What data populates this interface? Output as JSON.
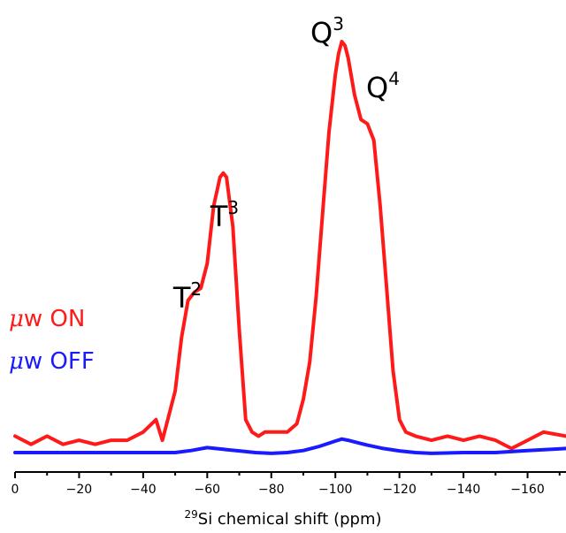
{
  "chart_data": {
    "type": "line",
    "title": "",
    "xlabel": {
      "superscript": "29",
      "text": "Si chemical shift (ppm)"
    },
    "ylabel": "",
    "xlim": [
      0,
      -172
    ],
    "x_reversed": true,
    "y_axis_visible": false,
    "grid": false,
    "x_ticks": [
      0,
      -20,
      -40,
      -60,
      -80,
      -100,
      -120,
      -140,
      -160
    ],
    "x_tick_labels": [
      "0",
      "−20",
      "−40",
      "−60",
      "−80",
      "−100",
      "−120",
      "−140",
      "−160"
    ],
    "ylim": [
      -0.05,
      1.0
    ],
    "legend_placement": "left",
    "legend": [
      {
        "symbol": "μ",
        "text": "w ON",
        "color": "#ff1a1a"
      },
      {
        "symbol": "μ",
        "text": "w OFF",
        "color": "#1a1aff"
      }
    ],
    "annotations": [
      {
        "base": "T",
        "sup": "2",
        "x": -53.5,
        "y": 0.45
      },
      {
        "base": "T",
        "sup": "3",
        "x": -65,
        "y": 0.68
      },
      {
        "base": "Q",
        "sup": "3",
        "x": -98,
        "y": 1.0
      },
      {
        "base": "Q",
        "sup": "4",
        "x": -114,
        "y": 0.85
      }
    ],
    "series": [
      {
        "name": "μw ON",
        "color": "#ff1a1a",
        "x": [
          0,
          -5,
          -10,
          -15,
          -20,
          -25,
          -30,
          -35,
          -40,
          -44,
          -46,
          -48,
          -50,
          -52,
          -54,
          -56,
          -58,
          -60,
          -62,
          -64,
          -65,
          -66,
          -68,
          -70,
          -72,
          -74,
          -76,
          -78,
          -80,
          -85,
          -88,
          -90,
          -92,
          -94,
          -96,
          -98,
          -100,
          -101,
          -102,
          -103,
          -104,
          -106,
          -108,
          -110,
          -112,
          -114,
          -116,
          -118,
          -120,
          -122,
          -125,
          -130,
          -135,
          -140,
          -145,
          -150,
          -155,
          -160,
          -165,
          -172
        ],
        "y": [
          0.04,
          0.02,
          0.04,
          0.02,
          0.03,
          0.02,
          0.03,
          0.03,
          0.05,
          0.08,
          0.03,
          0.09,
          0.15,
          0.28,
          0.37,
          0.39,
          0.4,
          0.46,
          0.6,
          0.67,
          0.68,
          0.67,
          0.55,
          0.3,
          0.08,
          0.05,
          0.04,
          0.05,
          0.05,
          0.05,
          0.07,
          0.13,
          0.22,
          0.38,
          0.58,
          0.78,
          0.92,
          0.97,
          1.0,
          0.99,
          0.96,
          0.87,
          0.81,
          0.8,
          0.76,
          0.6,
          0.4,
          0.2,
          0.08,
          0.05,
          0.04,
          0.03,
          0.04,
          0.03,
          0.04,
          0.03,
          0.01,
          0.03,
          0.05,
          0.04
        ]
      },
      {
        "name": "μw OFF",
        "color": "#1a1aff",
        "x": [
          0,
          -10,
          -20,
          -30,
          -40,
          -50,
          -55,
          -60,
          -65,
          -70,
          -75,
          -80,
          -85,
          -90,
          -95,
          -100,
          -102,
          -104,
          -106,
          -108,
          -110,
          -115,
          -120,
          -125,
          -130,
          -140,
          -150,
          -160,
          -172
        ],
        "y": [
          0.0,
          0.0,
          0.0,
          0.0,
          0.0,
          0.0,
          0.005,
          0.012,
          0.008,
          0.004,
          0.0,
          -0.002,
          0.0,
          0.005,
          0.015,
          0.028,
          0.033,
          0.03,
          0.026,
          0.022,
          0.018,
          0.01,
          0.004,
          0.0,
          -0.002,
          0.0,
          0.0,
          0.005,
          0.01
        ]
      }
    ]
  }
}
